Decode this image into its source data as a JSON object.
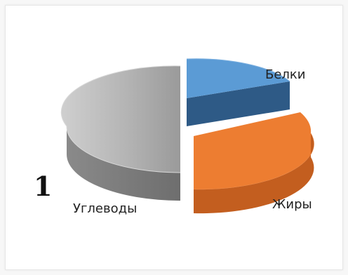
{
  "figure_number": "1",
  "chart_data": {
    "type": "pie",
    "style": "3d-exploded",
    "legend": "none",
    "series": [
      {
        "label": "Белки",
        "value": 20,
        "color": "#5b9bd5"
      },
      {
        "label": "Жиры",
        "value": 30,
        "color": "#ed7d31"
      },
      {
        "label": "Углеводы",
        "value": 50,
        "color": "#a5a5a5"
      }
    ]
  }
}
